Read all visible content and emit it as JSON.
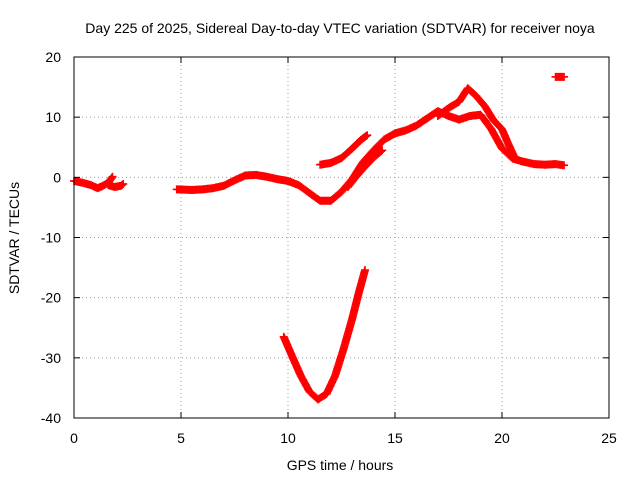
{
  "chart_data": {
    "type": "scatter",
    "title": "Day 225 of 2025, Sidereal Day-to-day VTEC variation (SDTVAR) for receiver noya",
    "xlabel": "GPS time / hours",
    "ylabel": "SDTVAR / TECUs",
    "xlim": [
      0,
      25
    ],
    "ylim": [
      -40,
      20
    ],
    "xticks": [
      0,
      5,
      10,
      15,
      20,
      25
    ],
    "yticks": [
      -40,
      -30,
      -20,
      -10,
      0,
      10,
      20
    ],
    "xtick_labels": [
      "0",
      "5",
      "10",
      "15",
      "20",
      "25"
    ],
    "ytick_labels": [
      "-40",
      "-30",
      "-20",
      "-10",
      "0",
      "10",
      "20"
    ],
    "grid": true,
    "marker": "plus",
    "color": "#ff0000",
    "series": [
      {
        "name": "arc-early-1",
        "points": [
          [
            0.0,
            -0.6
          ],
          [
            0.4,
            -0.9
          ],
          [
            0.8,
            -1.3
          ],
          [
            1.1,
            -1.8
          ],
          [
            1.3,
            -1.5
          ],
          [
            1.6,
            -0.9
          ],
          [
            1.8,
            0.1
          ]
        ]
      },
      {
        "name": "arc-early-2",
        "points": [
          [
            1.6,
            -1.3
          ],
          [
            1.9,
            -1.6
          ],
          [
            2.2,
            -1.4
          ],
          [
            2.3,
            -1.1
          ]
        ]
      },
      {
        "name": "arc-main",
        "points": [
          [
            4.8,
            -2.0
          ],
          [
            5.5,
            -2.1
          ],
          [
            6.0,
            -2.0
          ],
          [
            6.5,
            -1.8
          ],
          [
            7.0,
            -1.4
          ],
          [
            7.5,
            -0.5
          ],
          [
            8.0,
            0.3
          ],
          [
            8.5,
            0.4
          ],
          [
            9.0,
            0.1
          ],
          [
            9.5,
            -0.3
          ],
          [
            10.0,
            -0.6
          ],
          [
            10.5,
            -1.3
          ],
          [
            11.0,
            -2.6
          ],
          [
            11.5,
            -3.9
          ],
          [
            12.0,
            -3.9
          ],
          [
            12.5,
            -2.4
          ],
          [
            13.0,
            -0.3
          ],
          [
            13.5,
            2.5
          ],
          [
            14.0,
            4.5
          ],
          [
            14.5,
            6.3
          ],
          [
            15.0,
            7.3
          ],
          [
            15.5,
            7.8
          ],
          [
            16.0,
            8.6
          ],
          [
            16.5,
            9.8
          ],
          [
            17.0,
            11.0
          ],
          [
            17.5,
            10.2
          ],
          [
            18.0,
            9.6
          ],
          [
            18.5,
            10.2
          ],
          [
            19.0,
            10.4
          ],
          [
            19.5,
            8.0
          ],
          [
            20.0,
            4.8
          ],
          [
            20.5,
            3.1
          ],
          [
            21.0,
            2.6
          ],
          [
            21.5,
            2.2
          ],
          [
            22.0,
            2.1
          ],
          [
            22.5,
            2.2
          ],
          [
            22.9,
            2.0
          ]
        ]
      },
      {
        "name": "arc-upper",
        "points": [
          [
            17.0,
            10.2
          ],
          [
            17.5,
            11.5
          ],
          [
            18.0,
            12.6
          ],
          [
            18.4,
            14.8
          ],
          [
            18.8,
            13.5
          ],
          [
            19.2,
            11.8
          ],
          [
            19.6,
            9.5
          ],
          [
            20.0,
            8.0
          ],
          [
            20.3,
            5.5
          ],
          [
            20.6,
            3.2
          ]
        ]
      },
      {
        "name": "arc-12h",
        "points": [
          [
            11.5,
            2.1
          ],
          [
            12.0,
            2.4
          ],
          [
            12.5,
            3.2
          ],
          [
            13.0,
            4.8
          ],
          [
            13.4,
            6.2
          ],
          [
            13.7,
            7.0
          ]
        ]
      },
      {
        "name": "arc-cross",
        "points": [
          [
            12.8,
            -1.6
          ],
          [
            13.2,
            0.2
          ],
          [
            13.6,
            1.8
          ],
          [
            14.0,
            3.3
          ],
          [
            14.4,
            4.5
          ]
        ]
      },
      {
        "name": "arc-high-late",
        "points": [
          [
            22.5,
            16.7
          ],
          [
            22.9,
            16.7
          ]
        ]
      },
      {
        "name": "arc-dip",
        "points": [
          [
            9.8,
            -26.5
          ],
          [
            10.2,
            -29.8
          ],
          [
            10.6,
            -33.0
          ],
          [
            11.0,
            -35.6
          ],
          [
            11.4,
            -36.9
          ],
          [
            11.8,
            -36.0
          ],
          [
            12.2,
            -33.0
          ],
          [
            12.6,
            -28.5
          ],
          [
            13.0,
            -23.5
          ],
          [
            13.3,
            -19.3
          ],
          [
            13.6,
            -15.4
          ]
        ]
      }
    ]
  }
}
